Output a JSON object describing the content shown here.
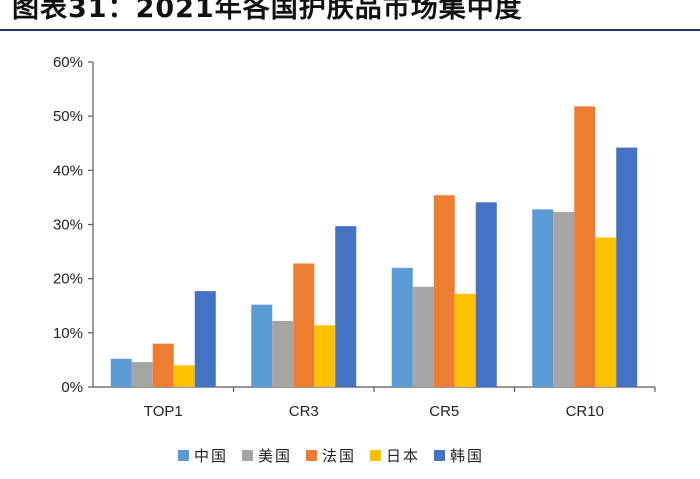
{
  "chart_data": {
    "type": "bar",
    "title": "图表31：2021年各国护肤品市场集中度",
    "categories": [
      "TOP1",
      "CR3",
      "CR5",
      "CR10"
    ],
    "series": [
      {
        "name": "中国",
        "values": [
          5.2,
          15.2,
          22.0,
          32.8
        ],
        "color": "#5b9bd5"
      },
      {
        "name": "美国",
        "values": [
          4.6,
          12.2,
          18.5,
          32.3
        ],
        "color": "#a5a5a5"
      },
      {
        "name": "法国",
        "values": [
          8.0,
          22.8,
          35.4,
          51.8
        ],
        "color": "#ed7d31"
      },
      {
        "name": "日本",
        "values": [
          4.0,
          11.4,
          17.2,
          27.6
        ],
        "color": "#ffc000"
      },
      {
        "name": "韩国",
        "values": [
          17.7,
          29.7,
          34.1,
          44.2
        ],
        "color": "#4472c4"
      }
    ],
    "ylim": [
      0,
      60
    ],
    "yticks": [
      "0%",
      "10%",
      "20%",
      "30%",
      "40%",
      "50%",
      "60%"
    ],
    "ytick_values": [
      0,
      10,
      20,
      30,
      40,
      50,
      60
    ],
    "grid": false,
    "legend_position": "bottom",
    "axis_color": "#595959"
  }
}
